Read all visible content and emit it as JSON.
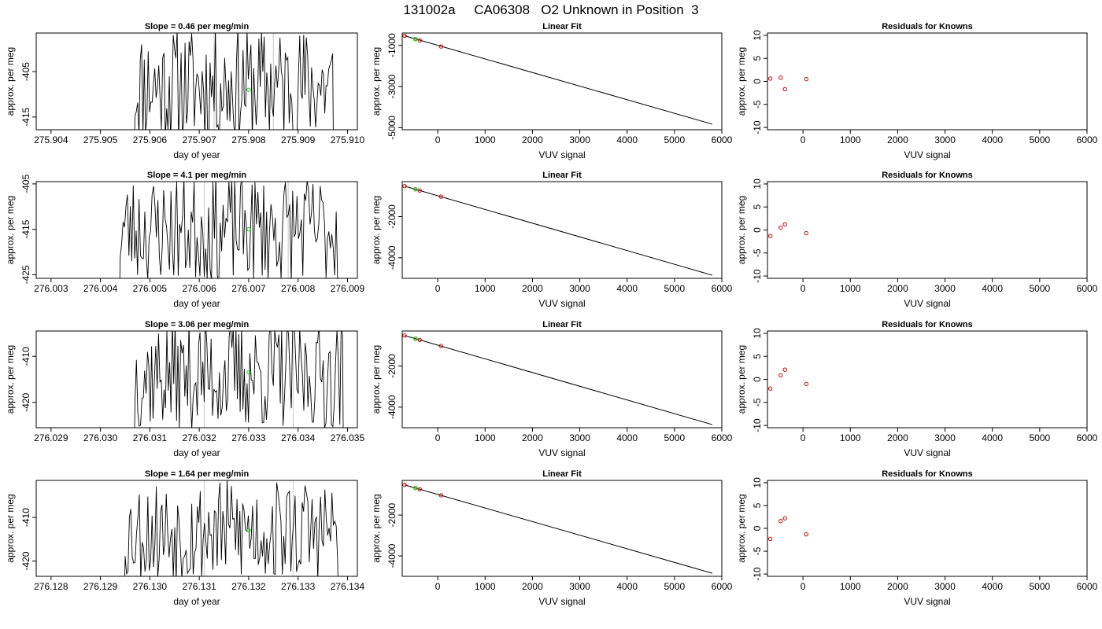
{
  "page_title": "131002a     CA06308   O2 Unknown in Position  3",
  "chart_data": [
    {
      "row": 1,
      "panel": "timeseries",
      "type": "line",
      "title": "Slope =  0.46  per meg/min",
      "xlabel": "day of year",
      "ylabel": "approx. per meg",
      "xlim": [
        275.9037,
        275.9102
      ],
      "ylim": [
        -417.8,
        -396.5
      ],
      "xticks": [
        "275.904",
        "275.905",
        "275.906",
        "275.907",
        "275.908",
        "275.909",
        "275.910"
      ],
      "yticks": [
        "-405",
        "-415"
      ],
      "ytick_values": [
        -405,
        -415
      ],
      "vlines": [
        275.9073,
        275.9078,
        275.9085
      ],
      "marker": {
        "x": 275.908,
        "y": -409,
        "color": "#00dd00"
      },
      "noise": {
        "start": 275.9057,
        "end": 275.9097,
        "center": -408,
        "amp": 13,
        "seed": 11
      },
      "colors": {
        "line": "#000000",
        "vline": "#c8c8c8"
      }
    },
    {
      "row": 1,
      "panel": "linearfit",
      "type": "line",
      "title": "Linear Fit",
      "xlabel": "VUV signal",
      "ylabel": "approx. per meg",
      "xlim": [
        -750,
        6000
      ],
      "ylim": [
        -5100,
        -400
      ],
      "xticks": [
        0,
        1000,
        2000,
        3000,
        4000,
        5000,
        6000
      ],
      "yticks": [
        "-1000",
        "-3000",
        "-5000"
      ],
      "ytick_values": [
        -1000,
        -3000,
        -5000
      ],
      "fit": {
        "x": [
          -700,
          5800
        ],
        "y": [
          -535,
          -4830
        ]
      },
      "points": [
        {
          "x": -700,
          "y": -535,
          "color": "#cc0000"
        },
        {
          "x": -470,
          "y": -695,
          "color": "#cc0000"
        },
        {
          "x": -380,
          "y": -760,
          "color": "#cc0000"
        },
        {
          "x": 70,
          "y": -1055,
          "color": "#cc0000"
        },
        {
          "x": -470,
          "y": -690,
          "color": "#00dd00"
        }
      ]
    },
    {
      "row": 1,
      "panel": "residuals",
      "type": "scatter",
      "title": "Residuals for Knowns",
      "xlabel": "VUV signal",
      "ylabel": "approx. per meg",
      "xlim": [
        -750,
        6000
      ],
      "ylim": [
        -10.5,
        10.5
      ],
      "xticks": [
        0,
        1000,
        2000,
        3000,
        4000,
        5000,
        6000
      ],
      "yticks": [
        "10",
        "5",
        "0",
        "-5",
        "-10"
      ],
      "ytick_values": [
        10,
        5,
        0,
        -5,
        -10
      ],
      "points": [
        {
          "x": -690,
          "y": 0.6,
          "color": "#cc0000"
        },
        {
          "x": -470,
          "y": 0.8,
          "color": "#cc0000"
        },
        {
          "x": -380,
          "y": -1.7,
          "color": "#cc0000"
        },
        {
          "x": 70,
          "y": 0.5,
          "color": "#cc0000"
        }
      ]
    },
    {
      "row": 2,
      "panel": "timeseries",
      "type": "line",
      "title": "Slope =  4.1  per meg/min",
      "xlabel": "day of year",
      "ylabel": "approx. per meg",
      "xlim": [
        276.0027,
        276.0092
      ],
      "ylim": [
        -425.8,
        -404.5
      ],
      "xticks": [
        "276.003",
        "276.004",
        "276.005",
        "276.006",
        "276.007",
        "276.008",
        "276.009"
      ],
      "yticks": [
        "-405",
        "-415",
        "-425"
      ],
      "ytick_values": [
        -405,
        -415,
        -425
      ],
      "vlines": [
        276.0061,
        276.0078
      ],
      "marker": {
        "x": 276.007,
        "y": -415,
        "color": "#00dd00"
      },
      "noise": {
        "start": 276.0044,
        "end": 276.0088,
        "center": -415,
        "amp": 12,
        "seed": 23
      },
      "colors": {
        "line": "#000000",
        "vline": "#c8c8c8"
      }
    },
    {
      "row": 2,
      "panel": "linearfit",
      "type": "line",
      "title": "Linear Fit",
      "xlabel": "VUV signal",
      "ylabel": "approx. per meg",
      "xlim": [
        -750,
        6000
      ],
      "ylim": [
        -5000,
        -300
      ],
      "xticks": [
        0,
        1000,
        2000,
        3000,
        4000,
        5000,
        6000
      ],
      "yticks": [
        "-2000",
        "-4000"
      ],
      "ytick_values": [
        -2000,
        -4000
      ],
      "fit": {
        "x": [
          -700,
          5800
        ],
        "y": [
          -520,
          -4850
        ]
      },
      "points": [
        {
          "x": -700,
          "y": -520,
          "color": "#cc0000"
        },
        {
          "x": -470,
          "y": -670,
          "color": "#cc0000"
        },
        {
          "x": -380,
          "y": -735,
          "color": "#cc0000"
        },
        {
          "x": 70,
          "y": -1030,
          "color": "#cc0000"
        },
        {
          "x": -470,
          "y": -675,
          "color": "#00dd00"
        }
      ]
    },
    {
      "row": 2,
      "panel": "residuals",
      "type": "scatter",
      "title": "Residuals for Knowns",
      "xlabel": "VUV signal",
      "ylabel": "approx. per meg",
      "xlim": [
        -750,
        6000
      ],
      "ylim": [
        -10.5,
        10.5
      ],
      "xticks": [
        0,
        1000,
        2000,
        3000,
        4000,
        5000,
        6000
      ],
      "yticks": [
        "10",
        "5",
        "0",
        "-5",
        "-10"
      ],
      "ytick_values": [
        10,
        5,
        0,
        -5,
        -10
      ],
      "points": [
        {
          "x": -690,
          "y": -1.3,
          "color": "#cc0000"
        },
        {
          "x": -470,
          "y": 0.5,
          "color": "#cc0000"
        },
        {
          "x": -380,
          "y": 1.2,
          "color": "#cc0000"
        },
        {
          "x": 70,
          "y": -0.7,
          "color": "#cc0000"
        }
      ]
    },
    {
      "row": 3,
      "panel": "timeseries",
      "type": "line",
      "title": "Slope =  3.06  per meg/min",
      "xlabel": "day of year",
      "ylabel": "approx. per meg",
      "xlim": [
        276.0287,
        276.0352
      ],
      "ylim": [
        -425.5,
        -404.5
      ],
      "xticks": [
        "276.029",
        "276.030",
        "276.031",
        "276.032",
        "276.033",
        "276.034",
        "276.035"
      ],
      "yticks": [
        "-410",
        "-420"
      ],
      "ytick_values": [
        -410,
        -420
      ],
      "vlines": [
        276.0321,
        276.0339
      ],
      "marker": {
        "x": 276.033,
        "y": -413.5,
        "color": "#00dd00"
      },
      "noise": {
        "start": 276.0307,
        "end": 276.0349,
        "center": -414,
        "amp": 12,
        "seed": 37
      },
      "colors": {
        "line": "#000000",
        "vline": "#c8c8c8"
      }
    },
    {
      "row": 3,
      "panel": "linearfit",
      "type": "line",
      "title": "Linear Fit",
      "xlabel": "VUV signal",
      "ylabel": "approx. per meg",
      "xlim": [
        -750,
        6000
      ],
      "ylim": [
        -5000,
        -300
      ],
      "xticks": [
        0,
        1000,
        2000,
        3000,
        4000,
        5000,
        6000
      ],
      "yticks": [
        "-2000",
        "-4000"
      ],
      "ytick_values": [
        -2000,
        -4000
      ],
      "fit": {
        "x": [
          -700,
          5800
        ],
        "y": [
          -520,
          -4850
        ]
      },
      "points": [
        {
          "x": -700,
          "y": -520,
          "color": "#cc0000"
        },
        {
          "x": -470,
          "y": -670,
          "color": "#cc0000"
        },
        {
          "x": -380,
          "y": -735,
          "color": "#cc0000"
        },
        {
          "x": 70,
          "y": -1030,
          "color": "#cc0000"
        },
        {
          "x": -470,
          "y": -675,
          "color": "#00dd00"
        }
      ]
    },
    {
      "row": 3,
      "panel": "residuals",
      "type": "scatter",
      "title": "Residuals for Knowns",
      "xlabel": "VUV signal",
      "ylabel": "approx. per meg",
      "xlim": [
        -750,
        6000
      ],
      "ylim": [
        -10.5,
        10.5
      ],
      "xticks": [
        0,
        1000,
        2000,
        3000,
        4000,
        5000,
        6000
      ],
      "yticks": [
        "10",
        "5",
        "0",
        "-5",
        "-10"
      ],
      "ytick_values": [
        10,
        5,
        0,
        -5,
        -10
      ],
      "points": [
        {
          "x": -690,
          "y": -2.0,
          "color": "#cc0000"
        },
        {
          "x": -470,
          "y": 0.9,
          "color": "#cc0000"
        },
        {
          "x": -380,
          "y": 2.1,
          "color": "#cc0000"
        },
        {
          "x": 70,
          "y": -1.0,
          "color": "#cc0000"
        }
      ]
    },
    {
      "row": 4,
      "panel": "timeseries",
      "type": "line",
      "title": "Slope =  1.64  per meg/min",
      "xlabel": "day of year",
      "ylabel": "approx. per meg",
      "xlim": [
        276.1277,
        276.1342
      ],
      "ylim": [
        -423.5,
        -401.5
      ],
      "xticks": [
        "276.128",
        "276.129",
        "276.130",
        "276.131",
        "276.132",
        "276.133",
        "276.134"
      ],
      "yticks": [
        "-410",
        "-420"
      ],
      "ytick_values": [
        -410,
        -420
      ],
      "vlines": [
        276.1311,
        276.1329
      ],
      "marker": {
        "x": 276.132,
        "y": -413,
        "color": "#00dd00"
      },
      "noise": {
        "start": 276.1295,
        "end": 276.1338,
        "center": -413,
        "amp": 12,
        "seed": 53
      },
      "colors": {
        "line": "#000000",
        "vline": "#c8c8c8"
      }
    },
    {
      "row": 4,
      "panel": "linearfit",
      "type": "line",
      "title": "Linear Fit",
      "xlabel": "VUV signal",
      "ylabel": "approx. per meg",
      "xlim": [
        -750,
        6000
      ],
      "ylim": [
        -5000,
        -300
      ],
      "xticks": [
        0,
        1000,
        2000,
        3000,
        4000,
        5000,
        6000
      ],
      "yticks": [
        "-2000",
        "-4000"
      ],
      "ytick_values": [
        -2000,
        -4000
      ],
      "fit": {
        "x": [
          -700,
          5800
        ],
        "y": [
          -520,
          -4850
        ]
      },
      "points": [
        {
          "x": -700,
          "y": -520,
          "color": "#cc0000"
        },
        {
          "x": -470,
          "y": -670,
          "color": "#cc0000"
        },
        {
          "x": -380,
          "y": -735,
          "color": "#cc0000"
        },
        {
          "x": 70,
          "y": -1030,
          "color": "#cc0000"
        },
        {
          "x": -470,
          "y": -675,
          "color": "#00dd00"
        }
      ]
    },
    {
      "row": 4,
      "panel": "residuals",
      "type": "scatter",
      "title": "Residuals for Knowns",
      "xlabel": "VUV signal",
      "ylabel": "approx. per meg",
      "xlim": [
        -750,
        6000
      ],
      "ylim": [
        -10.5,
        10.5
      ],
      "xticks": [
        0,
        1000,
        2000,
        3000,
        4000,
        5000,
        6000
      ],
      "yticks": [
        "10",
        "5",
        "0",
        "-5",
        "-10"
      ],
      "ytick_values": [
        10,
        5,
        0,
        -5,
        -10
      ],
      "points": [
        {
          "x": -690,
          "y": -2.3,
          "color": "#cc0000"
        },
        {
          "x": -470,
          "y": 1.6,
          "color": "#cc0000"
        },
        {
          "x": -380,
          "y": 2.2,
          "color": "#cc0000"
        },
        {
          "x": 70,
          "y": -1.3,
          "color": "#cc0000"
        }
      ]
    }
  ]
}
